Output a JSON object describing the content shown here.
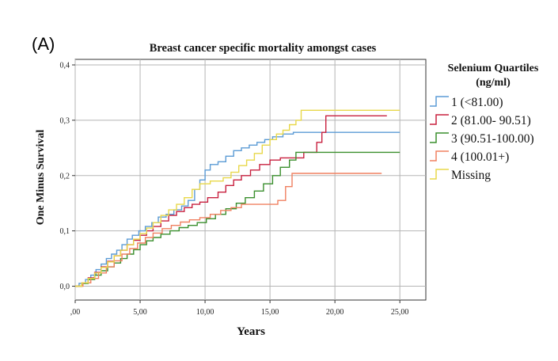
{
  "panel_label": "(A)",
  "chart_data": {
    "type": "line",
    "step": true,
    "title": "Breast cancer specific mortality amongst cases",
    "xlabel": "Years",
    "ylabel": "One Minus Survival",
    "xlim": [
      0,
      27
    ],
    "ylim": [
      -0.025,
      0.41
    ],
    "xticks": [
      0,
      5,
      10,
      15,
      20,
      25
    ],
    "xtick_labels": [
      ",00",
      "5,00",
      "10,00",
      "15,00",
      "20,00",
      "25,00"
    ],
    "yticks": [
      0,
      0.1,
      0.2,
      0.3,
      0.4
    ],
    "ytick_labels": [
      "0,0",
      "0,1",
      "0,2",
      "0,3",
      "0,4"
    ],
    "grid": true,
    "legend": {
      "title_line1": "Selenium Quartiles",
      "title_line2": "(ng/ml)",
      "position": "right"
    },
    "series": [
      {
        "name": "1 (<81.00)",
        "color": "#5b9bd5",
        "points": [
          [
            0,
            0
          ],
          [
            0.3,
            0.005
          ],
          [
            0.8,
            0.012
          ],
          [
            1.2,
            0.02
          ],
          [
            1.6,
            0.03
          ],
          [
            2.0,
            0.04
          ],
          [
            2.4,
            0.05
          ],
          [
            2.8,
            0.058
          ],
          [
            3.2,
            0.065
          ],
          [
            3.6,
            0.075
          ],
          [
            4.0,
            0.085
          ],
          [
            4.4,
            0.092
          ],
          [
            4.9,
            0.1
          ],
          [
            5.4,
            0.108
          ],
          [
            5.9,
            0.115
          ],
          [
            6.4,
            0.125
          ],
          [
            7.0,
            0.13
          ],
          [
            7.6,
            0.138
          ],
          [
            8.2,
            0.145
          ],
          [
            8.7,
            0.155
          ],
          [
            9.2,
            0.175
          ],
          [
            9.6,
            0.192
          ],
          [
            10.0,
            0.21
          ],
          [
            10.4,
            0.22
          ],
          [
            11.0,
            0.225
          ],
          [
            11.6,
            0.235
          ],
          [
            12.2,
            0.245
          ],
          [
            12.8,
            0.25
          ],
          [
            13.4,
            0.255
          ],
          [
            14.0,
            0.26
          ],
          [
            14.6,
            0.265
          ],
          [
            15.2,
            0.27
          ],
          [
            16.0,
            0.275
          ],
          [
            16.8,
            0.278
          ],
          [
            25,
            0.278
          ]
        ]
      },
      {
        "name": "2 (81.00- 90.51)",
        "color": "#c8203f",
        "points": [
          [
            0,
            0
          ],
          [
            0.5,
            0.006
          ],
          [
            1.0,
            0.015
          ],
          [
            1.5,
            0.025
          ],
          [
            2.0,
            0.035
          ],
          [
            2.5,
            0.045
          ],
          [
            3.0,
            0.055
          ],
          [
            3.5,
            0.065
          ],
          [
            4.0,
            0.075
          ],
          [
            4.5,
            0.083
          ],
          [
            5.0,
            0.092
          ],
          [
            5.5,
            0.1
          ],
          [
            6.0,
            0.108
          ],
          [
            6.6,
            0.118
          ],
          [
            7.2,
            0.128
          ],
          [
            7.8,
            0.135
          ],
          [
            8.4,
            0.142
          ],
          [
            9.0,
            0.148
          ],
          [
            9.6,
            0.152
          ],
          [
            10.2,
            0.16
          ],
          [
            11.0,
            0.17
          ],
          [
            11.6,
            0.182
          ],
          [
            12.2,
            0.192
          ],
          [
            12.8,
            0.2
          ],
          [
            13.5,
            0.21
          ],
          [
            14.2,
            0.22
          ],
          [
            15.0,
            0.228
          ],
          [
            15.8,
            0.232
          ],
          [
            17.6,
            0.242
          ],
          [
            18.6,
            0.26
          ],
          [
            19.0,
            0.278
          ],
          [
            19.3,
            0.308
          ],
          [
            24,
            0.308
          ]
        ]
      },
      {
        "name": "3 (90.51-100.00)",
        "color": "#3a8f2d",
        "points": [
          [
            0,
            0
          ],
          [
            0.5,
            0.005
          ],
          [
            1.0,
            0.012
          ],
          [
            1.5,
            0.02
          ],
          [
            2.0,
            0.028
          ],
          [
            2.5,
            0.035
          ],
          [
            3.0,
            0.042
          ],
          [
            3.5,
            0.05
          ],
          [
            4.0,
            0.058
          ],
          [
            4.5,
            0.066
          ],
          [
            5.0,
            0.075
          ],
          [
            5.5,
            0.082
          ],
          [
            6.0,
            0.088
          ],
          [
            6.6,
            0.094
          ],
          [
            7.3,
            0.1
          ],
          [
            8.0,
            0.106
          ],
          [
            8.7,
            0.11
          ],
          [
            9.4,
            0.115
          ],
          [
            10.1,
            0.122
          ],
          [
            10.8,
            0.13
          ],
          [
            11.6,
            0.14
          ],
          [
            12.4,
            0.15
          ],
          [
            13.1,
            0.16
          ],
          [
            13.8,
            0.172
          ],
          [
            14.5,
            0.185
          ],
          [
            15.2,
            0.2
          ],
          [
            15.8,
            0.215
          ],
          [
            16.5,
            0.228
          ],
          [
            17.0,
            0.242
          ],
          [
            25,
            0.242
          ]
        ]
      },
      {
        "name": "4 (100.01+)",
        "color": "#f08060",
        "points": [
          [
            0,
            0
          ],
          [
            0.6,
            0.006
          ],
          [
            1.2,
            0.014
          ],
          [
            1.8,
            0.024
          ],
          [
            2.4,
            0.035
          ],
          [
            3.0,
            0.046
          ],
          [
            3.6,
            0.058
          ],
          [
            4.2,
            0.068
          ],
          [
            4.8,
            0.078
          ],
          [
            5.4,
            0.088
          ],
          [
            6.0,
            0.096
          ],
          [
            6.7,
            0.104
          ],
          [
            7.4,
            0.11
          ],
          [
            8.1,
            0.116
          ],
          [
            8.8,
            0.12
          ],
          [
            9.6,
            0.124
          ],
          [
            10.4,
            0.13
          ],
          [
            11.2,
            0.137
          ],
          [
            12.0,
            0.142
          ],
          [
            12.8,
            0.148
          ],
          [
            15.6,
            0.155
          ],
          [
            16.2,
            0.18
          ],
          [
            16.7,
            0.204
          ],
          [
            23.6,
            0.204
          ]
        ]
      },
      {
        "name": "Missing",
        "color": "#e8d84a",
        "points": [
          [
            0,
            0
          ],
          [
            0.5,
            0.006
          ],
          [
            1.0,
            0.014
          ],
          [
            1.5,
            0.024
          ],
          [
            2.0,
            0.034
          ],
          [
            2.5,
            0.044
          ],
          [
            3.0,
            0.055
          ],
          [
            3.5,
            0.065
          ],
          [
            4.0,
            0.075
          ],
          [
            4.5,
            0.085
          ],
          [
            5.0,
            0.095
          ],
          [
            5.5,
            0.105
          ],
          [
            6.0,
            0.115
          ],
          [
            6.6,
            0.128
          ],
          [
            7.2,
            0.138
          ],
          [
            7.8,
            0.148
          ],
          [
            8.4,
            0.16
          ],
          [
            9.0,
            0.175
          ],
          [
            9.6,
            0.185
          ],
          [
            10.4,
            0.19
          ],
          [
            11.4,
            0.196
          ],
          [
            12.0,
            0.206
          ],
          [
            12.6,
            0.218
          ],
          [
            13.2,
            0.228
          ],
          [
            13.8,
            0.24
          ],
          [
            14.4,
            0.255
          ],
          [
            15.0,
            0.265
          ],
          [
            15.5,
            0.275
          ],
          [
            16.0,
            0.282
          ],
          [
            16.5,
            0.292
          ],
          [
            17.0,
            0.3
          ],
          [
            17.4,
            0.318
          ],
          [
            25,
            0.318
          ]
        ]
      }
    ]
  }
}
